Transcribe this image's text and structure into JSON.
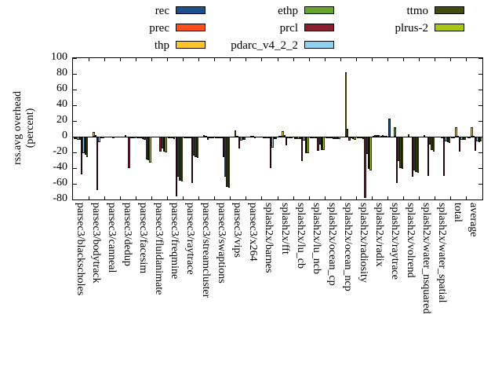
{
  "figure": {
    "background": "#ffffff",
    "frame_color": "#000000"
  },
  "chart_data": {
    "type": "bar",
    "title": "",
    "ylabel_line1": "rss.avg overhead",
    "ylabel_line2": "(percent)",
    "xlabel": "",
    "ylim": [
      -80,
      100
    ],
    "yticks": [
      100,
      80,
      60,
      40,
      20,
      0,
      -20,
      -40,
      -60,
      -80
    ],
    "grid": false,
    "legend_position": "top",
    "legend_rows": 3,
    "categories": [
      "parsec3/blackscholes",
      "parsec3/bodytrack",
      "parsec3/canneal",
      "parsec3/dedup",
      "parsec3/facesim",
      "parsec3/fluidanimate",
      "parsec3/freqmine",
      "parsec3/raytrace",
      "parsec3/streamcluster",
      "parsec3/swaptions",
      "parsec3/vips",
      "parsec3/x264",
      "splash2x/barnes",
      "splash2x/fft",
      "splash2x/lu_cb",
      "splash2x/lu_ncb",
      "splash2x/ocean_cp",
      "splash2x/ocean_ncp",
      "splash2x/radiosity",
      "splash2x/radix",
      "splash2x/raytrace",
      "splash2x/volrend",
      "splash2x/water_nsquared",
      "splash2x/water_spatial",
      "total",
      "average"
    ],
    "series": [
      {
        "name": "rec",
        "color": "#1c4f8c",
        "values": [
          -3,
          -1,
          -1,
          -1,
          -2,
          -1,
          -2,
          -2,
          -1,
          -2,
          -1,
          0,
          -2,
          1,
          -3,
          -2,
          -2,
          -1,
          -2,
          1,
          23,
          -1,
          -1,
          -1,
          -2,
          -2
        ]
      },
      {
        "name": "prec",
        "color": "#fc4f1c",
        "values": [
          -3,
          -1,
          -1,
          -1,
          -2,
          -1,
          -2,
          -2,
          -1,
          -2,
          -1,
          0,
          -2,
          1,
          -3,
          -2,
          -2,
          -1,
          -2,
          2,
          0,
          -1,
          -1,
          -1,
          -2,
          -2
        ]
      },
      {
        "name": "thp",
        "color": "#fdc42c",
        "values": [
          -4,
          6,
          -1,
          2,
          -2,
          -1,
          -2,
          -2,
          2,
          -2,
          8,
          1,
          -2,
          7,
          -3,
          -2,
          -2,
          82,
          -2,
          2,
          -1,
          3,
          2,
          -1,
          12,
          12
        ]
      },
      {
        "name": "ethp",
        "color": "#67a42a",
        "values": [
          -4,
          2,
          -1,
          -1,
          -3,
          -1,
          -3,
          -2,
          1,
          -2,
          1,
          1,
          -2,
          2,
          -3,
          -2,
          -2,
          10,
          -3,
          2,
          12,
          -1,
          -1,
          -2,
          1,
          1
        ]
      },
      {
        "name": "prcl",
        "color": "#8c1c30",
        "values": [
          -48,
          -68,
          -2,
          -40,
          -4,
          -19,
          -76,
          -59,
          -4,
          -26,
          -15,
          -2,
          -40,
          -11,
          -31,
          -18,
          -3,
          -5,
          -78,
          1,
          -59,
          -51,
          -50,
          -50,
          -19,
          -18
        ]
      },
      {
        "name": "pdarc_v4_2_2",
        "color": "#90d0f0",
        "values": [
          -21,
          -7,
          -1,
          -2,
          -29,
          -15,
          -51,
          -24,
          -2,
          -51,
          -5,
          -1,
          -14,
          -2,
          -5,
          -10,
          -3,
          -2,
          -22,
          2,
          -31,
          -43,
          -10,
          -6,
          -4,
          -6
        ]
      },
      {
        "name": "ttmo",
        "color": "#434a10",
        "values": [
          -23,
          -2,
          -1,
          -2,
          -30,
          -19,
          -56,
          -26,
          -2,
          -64,
          -4,
          -1,
          -3,
          -2,
          -21,
          -17,
          -3,
          -3,
          -41,
          1,
          -40,
          -45,
          -17,
          -7,
          -4,
          -7
        ]
      },
      {
        "name": "plrus-2",
        "color": "#a9c614",
        "values": [
          -26,
          -2,
          -1,
          -2,
          -33,
          -20,
          -57,
          -27,
          -2,
          -65,
          -4,
          -1,
          -3,
          -2,
          -21,
          -17,
          -3,
          -4,
          -43,
          1,
          -41,
          -46,
          -19,
          -8,
          -4,
          -6
        ]
      }
    ]
  }
}
